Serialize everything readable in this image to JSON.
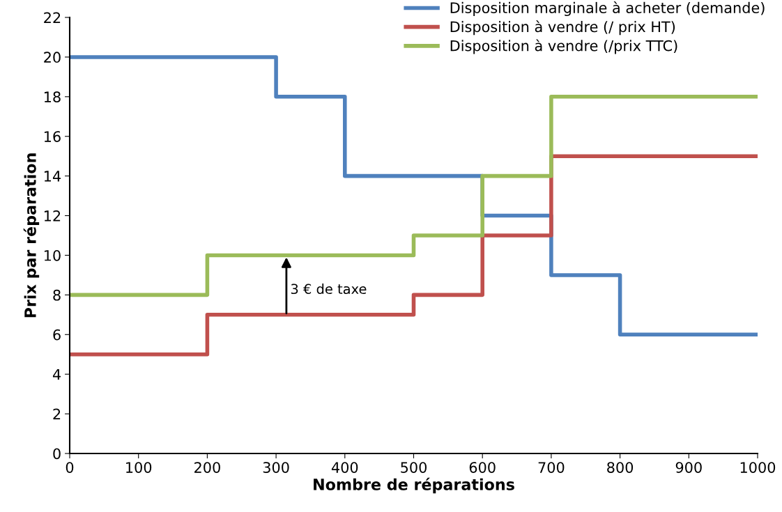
{
  "chart_data": {
    "type": "step",
    "xlabel": "Nombre de réparations",
    "ylabel": "Prix par réparation",
    "xlim": [
      0,
      1000
    ],
    "xticks": [
      0,
      100,
      200,
      300,
      400,
      500,
      600,
      700,
      800,
      900,
      1000
    ],
    "ylim": [
      0,
      22
    ],
    "yticks": [
      0,
      2,
      4,
      6,
      8,
      10,
      12,
      14,
      16,
      18,
      20,
      22
    ],
    "series": [
      {
        "name": "Disposition marginale à acheter (demande)",
        "color": "#4f81bd",
        "x": [
          0,
          300,
          400,
          600,
          700,
          800,
          1000
        ],
        "values": [
          20,
          18,
          14,
          12,
          9,
          6,
          6
        ]
      },
      {
        "name": "Disposition à vendre (/ prix HT)",
        "color": "#c0504d",
        "x": [
          0,
          200,
          500,
          600,
          700,
          1000
        ],
        "values": [
          5,
          7,
          8,
          11,
          15,
          15
        ]
      },
      {
        "name": "Disposition à vendre (/prix TTC)",
        "color": "#9bbb59",
        "x": [
          0,
          200,
          500,
          600,
          700,
          1000
        ],
        "values": [
          8,
          10,
          11,
          14,
          18,
          18
        ]
      }
    ],
    "annotations": [
      {
        "text": "3 € de taxe",
        "x": 315,
        "y": 10
      }
    ],
    "legend": "top right",
    "grid": false,
    "line_style": "solid",
    "marker": "none"
  }
}
